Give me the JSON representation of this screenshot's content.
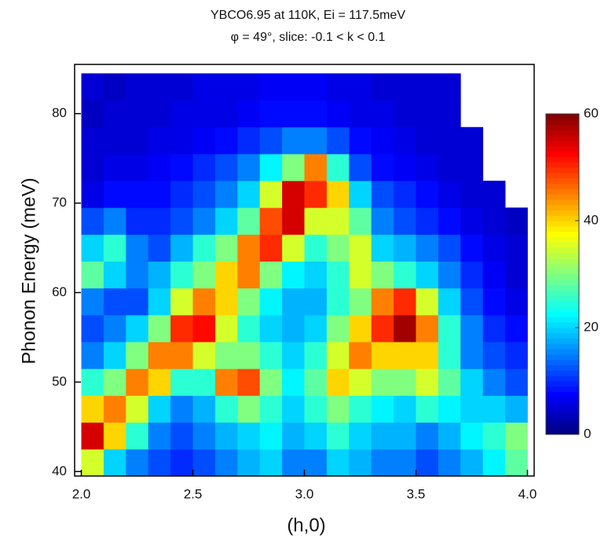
{
  "chart_data": {
    "type": "heatmap",
    "title": "YBCO6.95 at 110K, Ei = 117.5meV",
    "subtitle": "φ = 49°, slice: -0.1 < k < 0.1",
    "xlabel": "(h,0)",
    "ylabel": "Phonon Energy (meV)",
    "colormap": "jet",
    "x": [
      2.05,
      2.15,
      2.25,
      2.35,
      2.45,
      2.55,
      2.65,
      2.75,
      2.85,
      2.95,
      3.05,
      3.15,
      3.25,
      3.35,
      3.45,
      3.55,
      3.65,
      3.75,
      3.85,
      3.95
    ],
    "y": [
      41,
      44,
      47,
      50,
      53,
      56,
      59,
      62,
      65,
      68,
      71,
      74,
      77,
      80,
      83
    ],
    "values": [
      [
        35,
        20,
        15,
        12,
        10,
        12,
        15,
        18,
        20,
        15,
        15,
        20,
        18,
        15,
        15,
        12,
        15,
        18,
        22,
        28
      ],
      [
        55,
        40,
        25,
        15,
        12,
        15,
        18,
        20,
        22,
        18,
        20,
        25,
        20,
        18,
        18,
        15,
        18,
        22,
        25,
        30
      ],
      [
        40,
        45,
        35,
        20,
        15,
        18,
        25,
        30,
        25,
        20,
        25,
        30,
        25,
        22,
        20,
        25,
        22,
        20,
        20,
        18
      ],
      [
        25,
        30,
        45,
        40,
        25,
        25,
        45,
        48,
        30,
        22,
        28,
        40,
        35,
        30,
        30,
        35,
        28,
        20,
        15,
        12
      ],
      [
        15,
        20,
        30,
        45,
        45,
        35,
        30,
        30,
        25,
        20,
        25,
        35,
        45,
        40,
        40,
        40,
        25,
        15,
        12,
        10
      ],
      [
        12,
        15,
        20,
        30,
        50,
        52,
        35,
        25,
        20,
        18,
        20,
        30,
        40,
        50,
        58,
        45,
        25,
        15,
        10,
        8
      ],
      [
        15,
        12,
        12,
        20,
        35,
        45,
        40,
        30,
        22,
        18,
        18,
        25,
        30,
        45,
        50,
        35,
        20,
        12,
        8,
        6
      ],
      [
        28,
        20,
        15,
        18,
        25,
        30,
        40,
        45,
        30,
        22,
        20,
        25,
        35,
        30,
        25,
        20,
        15,
        10,
        7,
        5
      ],
      [
        20,
        25,
        15,
        12,
        18,
        25,
        30,
        45,
        50,
        35,
        25,
        30,
        35,
        20,
        18,
        15,
        12,
        8,
        6,
        5
      ],
      [
        12,
        15,
        10,
        10,
        12,
        15,
        20,
        28,
        48,
        55,
        35,
        35,
        28,
        15,
        12,
        10,
        8,
        6,
        5,
        4
      ],
      [
        6,
        8,
        8,
        8,
        10,
        12,
        15,
        20,
        35,
        55,
        50,
        40,
        20,
        12,
        10,
        8,
        6,
        5,
        5,
        null
      ],
      [
        5,
        6,
        6,
        7,
        8,
        10,
        12,
        15,
        22,
        30,
        45,
        25,
        12,
        8,
        7,
        6,
        5,
        5,
        null,
        null
      ],
      [
        5,
        5,
        5,
        6,
        6,
        7,
        8,
        10,
        12,
        15,
        15,
        12,
        8,
        7,
        6,
        5,
        5,
        5,
        null,
        null
      ],
      [
        4,
        5,
        5,
        5,
        6,
        6,
        6,
        7,
        8,
        8,
        8,
        7,
        6,
        6,
        5,
        5,
        5,
        null,
        null,
        null
      ],
      [
        5,
        4,
        5,
        5,
        5,
        6,
        6,
        6,
        7,
        7,
        7,
        6,
        6,
        5,
        5,
        5,
        5,
        null,
        null,
        null
      ]
    ],
    "xlim": [
      1.97,
      4.03
    ],
    "xticks": [
      {
        "value": 2,
        "label": "2.0"
      },
      2.5,
      {
        "value": 3,
        "label": "3.0"
      },
      3.5,
      {
        "value": 4,
        "label": "4.0"
      }
    ],
    "ylim": [
      39.5,
      85.5
    ],
    "yticks": [
      40,
      50,
      60,
      70,
      80
    ],
    "zlim": [
      0,
      60
    ],
    "zticks": [
      0,
      20,
      40,
      60
    ]
  }
}
